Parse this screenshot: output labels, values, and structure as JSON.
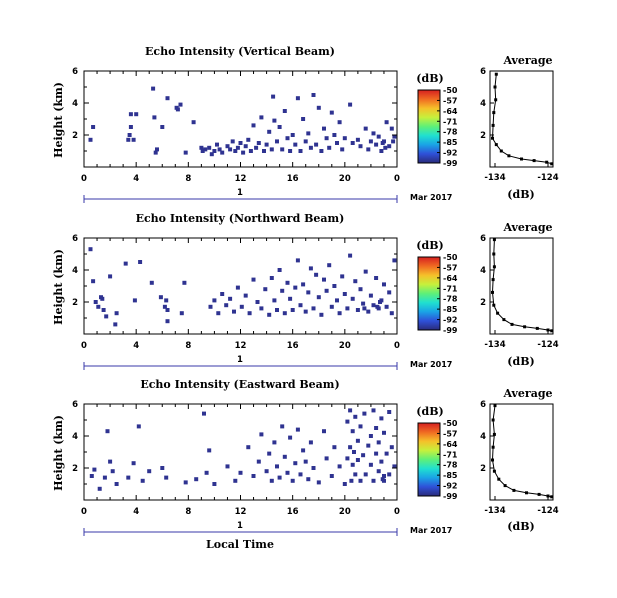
{
  "colors": {
    "echo": "#2f3391",
    "axis": "#000000",
    "date_bar": "#3a3aa8",
    "colorbar": [
      "#2a2b7a",
      "#2f50d8",
      "#1aa3e6",
      "#20e0d0",
      "#5ef078",
      "#c7f03c",
      "#f5c02a",
      "#f06a22",
      "#d62020"
    ]
  },
  "date_label": "Mar 2017",
  "date_day": "1",
  "xlabel_bottom": "Local Time",
  "chart_data": [
    {
      "type": "heatmap",
      "title": "Echo Intensity (Vertical Beam)",
      "ylabel": "Height (km)",
      "xlabel": "",
      "x_ticks": [
        "0",
        "4",
        "8",
        "12",
        "16",
        "20",
        "0"
      ],
      "xlim": [
        0,
        24
      ],
      "y_ticks": [
        "6",
        "4",
        "2"
      ],
      "ylim": [
        0,
        6
      ],
      "colorbar_label": "(dB)",
      "colorbar_ticks": [
        "-50",
        "-57",
        "-64",
        "-71",
        "-78",
        "-85",
        "-92",
        "-99"
      ],
      "clim": [
        -99,
        -50
      ],
      "echo_cells": [
        [
          0.5,
          1.7
        ],
        [
          0.7,
          2.5
        ],
        [
          3.4,
          1.7
        ],
        [
          3.5,
          2.0
        ],
        [
          3.6,
          2.5
        ],
        [
          3.6,
          3.3
        ],
        [
          3.8,
          1.7
        ],
        [
          4.0,
          3.3
        ],
        [
          5.3,
          4.9
        ],
        [
          5.4,
          3.1
        ],
        [
          5.5,
          0.9
        ],
        [
          5.6,
          1.1
        ],
        [
          6.0,
          2.5
        ],
        [
          6.4,
          4.3
        ],
        [
          7.1,
          3.7
        ],
        [
          7.2,
          3.6
        ],
        [
          7.4,
          3.9
        ],
        [
          7.8,
          0.9
        ],
        [
          8.4,
          2.8
        ],
        [
          9.0,
          1.2
        ],
        [
          9.1,
          1.0
        ],
        [
          9.3,
          1.1
        ],
        [
          9.6,
          1.2
        ],
        [
          9.8,
          0.8
        ],
        [
          10.0,
          1.0
        ],
        [
          10.2,
          1.4
        ],
        [
          10.4,
          1.1
        ],
        [
          10.6,
          0.9
        ],
        [
          11.0,
          1.3
        ],
        [
          11.2,
          1.1
        ],
        [
          11.4,
          1.6
        ],
        [
          11.6,
          1.0
        ],
        [
          11.8,
          1.2
        ],
        [
          12.0,
          1.5
        ],
        [
          12.2,
          0.9
        ],
        [
          12.4,
          1.3
        ],
        [
          12.6,
          1.7
        ],
        [
          12.8,
          1.0
        ],
        [
          13.0,
          2.6
        ],
        [
          13.2,
          1.2
        ],
        [
          13.4,
          1.5
        ],
        [
          13.6,
          3.1
        ],
        [
          13.8,
          1.0
        ],
        [
          14.0,
          1.4
        ],
        [
          14.2,
          2.2
        ],
        [
          14.4,
          1.1
        ],
        [
          14.5,
          4.4
        ],
        [
          14.6,
          2.9
        ],
        [
          14.8,
          1.6
        ],
        [
          15.0,
          2.5
        ],
        [
          15.2,
          1.1
        ],
        [
          15.4,
          3.5
        ],
        [
          15.6,
          1.8
        ],
        [
          15.8,
          1.0
        ],
        [
          16.0,
          2.0
        ],
        [
          16.2,
          1.4
        ],
        [
          16.4,
          4.3
        ],
        [
          16.6,
          1.0
        ],
        [
          16.8,
          3.0
        ],
        [
          17.0,
          1.6
        ],
        [
          17.2,
          2.1
        ],
        [
          17.4,
          1.2
        ],
        [
          17.6,
          4.5
        ],
        [
          17.8,
          1.4
        ],
        [
          18.0,
          3.7
        ],
        [
          18.2,
          1.0
        ],
        [
          18.4,
          2.4
        ],
        [
          18.6,
          1.8
        ],
        [
          18.8,
          1.2
        ],
        [
          19.0,
          3.4
        ],
        [
          19.2,
          2.0
        ],
        [
          19.4,
          1.5
        ],
        [
          19.6,
          2.8
        ],
        [
          19.8,
          1.1
        ],
        [
          20.0,
          1.8
        ],
        [
          20.4,
          3.9
        ],
        [
          20.6,
          1.5
        ],
        [
          21.0,
          1.7
        ],
        [
          21.2,
          1.3
        ],
        [
          21.6,
          2.4
        ],
        [
          21.8,
          1.1
        ],
        [
          22.0,
          1.6
        ],
        [
          22.2,
          2.1
        ],
        [
          22.4,
          1.4
        ],
        [
          22.6,
          1.9
        ],
        [
          22.8,
          1.0
        ],
        [
          23.0,
          1.6
        ],
        [
          23.2,
          2.8
        ],
        [
          23.4,
          1.3
        ],
        [
          23.6,
          2.4
        ],
        [
          23.8,
          1.9
        ],
        [
          23.7,
          1.6
        ],
        [
          22.9,
          1.5
        ],
        [
          23.1,
          1.2
        ]
      ],
      "avg_title": "Average",
      "avg_xlabel": "(dB)",
      "avg_x_ticks": [
        "-134",
        "-124"
      ],
      "avg_xlim": [
        -134,
        -124
      ],
      "avg_y_ticks": [
        "6",
        "4",
        "2"
      ],
      "avg_profile": [
        [
          -133.0,
          5.8
        ],
        [
          -133.2,
          5.0
        ],
        [
          -133.1,
          4.2
        ],
        [
          -133.4,
          3.4
        ],
        [
          -133.5,
          2.6
        ],
        [
          -133.6,
          1.8
        ],
        [
          -133.0,
          1.4
        ],
        [
          -132.2,
          1.0
        ],
        [
          -131.0,
          0.7
        ],
        [
          -129.0,
          0.5
        ],
        [
          -127.0,
          0.4
        ],
        [
          -125.0,
          0.3
        ],
        [
          -124.2,
          0.2
        ]
      ]
    },
    {
      "type": "heatmap",
      "title": "Echo Intensity (Northward Beam)",
      "ylabel": "Height (km)",
      "xlabel": "",
      "x_ticks": [
        "0",
        "4",
        "8",
        "12",
        "16",
        "20",
        "0"
      ],
      "xlim": [
        0,
        24
      ],
      "y_ticks": [
        "6",
        "4",
        "2"
      ],
      "ylim": [
        0,
        6
      ],
      "colorbar_label": "(dB)",
      "colorbar_ticks": [
        "-50",
        "-57",
        "-64",
        "-71",
        "-78",
        "-85",
        "-92",
        "-99"
      ],
      "clim": [
        -99,
        -50
      ],
      "echo_cells": [
        [
          0.5,
          5.3
        ],
        [
          0.7,
          3.3
        ],
        [
          0.9,
          2.0
        ],
        [
          1.1,
          1.7
        ],
        [
          1.3,
          2.3
        ],
        [
          1.4,
          2.2
        ],
        [
          1.5,
          1.5
        ],
        [
          1.7,
          1.1
        ],
        [
          2.0,
          3.6
        ],
        [
          2.4,
          0.6
        ],
        [
          2.5,
          1.3
        ],
        [
          3.2,
          4.4
        ],
        [
          3.9,
          2.1
        ],
        [
          4.3,
          4.5
        ],
        [
          5.2,
          3.2
        ],
        [
          5.9,
          2.3
        ],
        [
          6.2,
          1.7
        ],
        [
          6.3,
          2.1
        ],
        [
          6.4,
          1.5
        ],
        [
          6.4,
          0.8
        ],
        [
          7.5,
          1.3
        ],
        [
          7.7,
          3.2
        ],
        [
          9.7,
          1.7
        ],
        [
          10.0,
          2.1
        ],
        [
          10.3,
          1.3
        ],
        [
          10.6,
          2.5
        ],
        [
          10.9,
          1.8
        ],
        [
          11.2,
          2.2
        ],
        [
          11.5,
          1.4
        ],
        [
          11.8,
          2.9
        ],
        [
          12.1,
          1.7
        ],
        [
          12.4,
          2.4
        ],
        [
          12.7,
          1.3
        ],
        [
          13.0,
          3.4
        ],
        [
          13.3,
          2.0
        ],
        [
          13.6,
          1.6
        ],
        [
          13.9,
          2.8
        ],
        [
          14.2,
          1.2
        ],
        [
          14.4,
          3.5
        ],
        [
          14.6,
          2.1
        ],
        [
          14.8,
          1.5
        ],
        [
          15.0,
          4.0
        ],
        [
          15.2,
          2.7
        ],
        [
          15.4,
          1.3
        ],
        [
          15.6,
          3.2
        ],
        [
          15.8,
          2.2
        ],
        [
          16.0,
          1.5
        ],
        [
          16.2,
          2.9
        ],
        [
          16.4,
          4.6
        ],
        [
          16.6,
          1.8
        ],
        [
          16.8,
          3.1
        ],
        [
          17.0,
          1.4
        ],
        [
          17.2,
          2.6
        ],
        [
          17.4,
          4.1
        ],
        [
          17.6,
          1.6
        ],
        [
          17.8,
          3.7
        ],
        [
          18.0,
          2.3
        ],
        [
          18.2,
          1.2
        ],
        [
          18.4,
          3.4
        ],
        [
          18.6,
          2.7
        ],
        [
          18.8,
          4.3
        ],
        [
          19.0,
          1.7
        ],
        [
          19.2,
          3.0
        ],
        [
          19.4,
          2.1
        ],
        [
          19.6,
          1.3
        ],
        [
          19.8,
          3.6
        ],
        [
          20.0,
          2.5
        ],
        [
          20.2,
          1.6
        ],
        [
          20.4,
          4.9
        ],
        [
          20.6,
          2.2
        ],
        [
          20.8,
          3.3
        ],
        [
          21.0,
          1.5
        ],
        [
          21.2,
          2.8
        ],
        [
          21.4,
          1.9
        ],
        [
          21.6,
          3.9
        ],
        [
          21.8,
          1.4
        ],
        [
          22.0,
          2.4
        ],
        [
          22.2,
          1.8
        ],
        [
          22.4,
          3.5
        ],
        [
          22.6,
          1.6
        ],
        [
          22.8,
          2.1
        ],
        [
          23.0,
          3.1
        ],
        [
          23.2,
          1.7
        ],
        [
          23.4,
          2.6
        ],
        [
          23.6,
          1.3
        ],
        [
          23.8,
          4.6
        ],
        [
          22.5,
          1.7
        ],
        [
          21.5,
          1.6
        ],
        [
          22.7,
          2.0
        ]
      ],
      "avg_title": "Average",
      "avg_xlabel": "(dB)",
      "avg_x_ticks": [
        "-134",
        "-124"
      ],
      "avg_xlim": [
        -134,
        -124
      ],
      "avg_y_ticks": [
        "6",
        "4",
        "2"
      ],
      "avg_profile": [
        [
          -133.3,
          5.9
        ],
        [
          -133.4,
          5.0
        ],
        [
          -133.3,
          4.2
        ],
        [
          -133.5,
          3.4
        ],
        [
          -133.6,
          2.6
        ],
        [
          -133.4,
          1.8
        ],
        [
          -132.8,
          1.3
        ],
        [
          -131.8,
          0.9
        ],
        [
          -130.5,
          0.6
        ],
        [
          -128.5,
          0.45
        ],
        [
          -126.5,
          0.35
        ],
        [
          -124.8,
          0.25
        ],
        [
          -124.2,
          0.2
        ]
      ]
    },
    {
      "type": "heatmap",
      "title": "Echo Intensity (Eastward Beam)",
      "ylabel": "Height (km)",
      "xlabel": "Local Time",
      "x_ticks": [
        "0",
        "4",
        "8",
        "12",
        "16",
        "20",
        "0"
      ],
      "xlim": [
        0,
        24
      ],
      "y_ticks": [
        "6",
        "4",
        "2"
      ],
      "ylim": [
        0,
        6
      ],
      "colorbar_label": "(dB)",
      "colorbar_ticks": [
        "-50",
        "-57",
        "-64",
        "-71",
        "-78",
        "-85",
        "-92",
        "-99"
      ],
      "clim": [
        -99,
        -50
      ],
      "echo_cells": [
        [
          0.6,
          1.5
        ],
        [
          0.8,
          1.9
        ],
        [
          1.2,
          0.7
        ],
        [
          1.6,
          1.4
        ],
        [
          1.8,
          4.3
        ],
        [
          2.0,
          2.4
        ],
        [
          2.2,
          1.8
        ],
        [
          2.5,
          1.0
        ],
        [
          3.4,
          1.4
        ],
        [
          3.8,
          2.3
        ],
        [
          4.2,
          4.6
        ],
        [
          4.5,
          1.2
        ],
        [
          5.0,
          1.8
        ],
        [
          6.0,
          2.0
        ],
        [
          6.3,
          1.4
        ],
        [
          7.8,
          1.1
        ],
        [
          8.6,
          1.3
        ],
        [
          9.2,
          5.4
        ],
        [
          9.4,
          1.7
        ],
        [
          9.6,
          3.1
        ],
        [
          10.0,
          1.0
        ],
        [
          11.0,
          2.1
        ],
        [
          11.6,
          1.2
        ],
        [
          12.0,
          1.7
        ],
        [
          12.6,
          3.3
        ],
        [
          13.0,
          1.5
        ],
        [
          13.4,
          2.4
        ],
        [
          13.6,
          4.1
        ],
        [
          14.0,
          1.8
        ],
        [
          14.2,
          2.9
        ],
        [
          14.4,
          1.2
        ],
        [
          14.6,
          3.6
        ],
        [
          14.8,
          2.1
        ],
        [
          15.0,
          1.4
        ],
        [
          15.2,
          4.6
        ],
        [
          15.4,
          2.7
        ],
        [
          15.6,
          1.7
        ],
        [
          15.8,
          3.9
        ],
        [
          16.0,
          1.2
        ],
        [
          16.2,
          2.3
        ],
        [
          16.4,
          4.4
        ],
        [
          16.6,
          1.6
        ],
        [
          16.8,
          3.1
        ],
        [
          17.0,
          2.4
        ],
        [
          17.2,
          1.3
        ],
        [
          17.4,
          3.6
        ],
        [
          17.6,
          2.0
        ],
        [
          18.0,
          1.1
        ],
        [
          18.4,
          4.3
        ],
        [
          18.6,
          2.6
        ],
        [
          19.0,
          1.5
        ],
        [
          19.2,
          3.3
        ],
        [
          19.6,
          2.1
        ],
        [
          20.0,
          1.0
        ],
        [
          20.2,
          2.6
        ],
        [
          20.2,
          4.9
        ],
        [
          20.4,
          3.3
        ],
        [
          20.4,
          5.6
        ],
        [
          20.5,
          1.2
        ],
        [
          20.6,
          2.2
        ],
        [
          20.6,
          4.3
        ],
        [
          20.7,
          3.0
        ],
        [
          20.8,
          1.6
        ],
        [
          20.8,
          5.2
        ],
        [
          21.0,
          2.5
        ],
        [
          21.0,
          3.7
        ],
        [
          21.2,
          1.2
        ],
        [
          21.2,
          4.6
        ],
        [
          21.4,
          2.8
        ],
        [
          21.5,
          5.4
        ],
        [
          21.6,
          1.6
        ],
        [
          21.8,
          3.4
        ],
        [
          22.0,
          2.2
        ],
        [
          22.0,
          4.0
        ],
        [
          22.2,
          1.2
        ],
        [
          22.2,
          5.6
        ],
        [
          22.4,
          2.9
        ],
        [
          22.4,
          4.5
        ],
        [
          22.6,
          1.8
        ],
        [
          22.6,
          3.6
        ],
        [
          22.8,
          2.4
        ],
        [
          22.8,
          5.1
        ],
        [
          23.0,
          1.2
        ],
        [
          23.0,
          4.2
        ],
        [
          23.2,
          2.9
        ],
        [
          23.4,
          1.6
        ],
        [
          23.4,
          5.5
        ],
        [
          23.6,
          3.3
        ],
        [
          23.8,
          2.1
        ],
        [
          23.0,
          1.5
        ],
        [
          22.9,
          1.3
        ]
      ],
      "avg_title": "Average",
      "avg_xlabel": "(dB)",
      "avg_x_ticks": [
        "-134",
        "-124"
      ],
      "avg_xlim": [
        -134,
        -124
      ],
      "avg_y_ticks": [
        "6",
        "4",
        "2"
      ],
      "avg_profile": [
        [
          -133.2,
          5.9
        ],
        [
          -133.5,
          5.0
        ],
        [
          -133.3,
          4.1
        ],
        [
          -133.5,
          3.3
        ],
        [
          -133.6,
          2.5
        ],
        [
          -133.3,
          1.8
        ],
        [
          -132.6,
          1.3
        ],
        [
          -131.6,
          0.9
        ],
        [
          -130.2,
          0.6
        ],
        [
          -128.2,
          0.45
        ],
        [
          -126.2,
          0.35
        ],
        [
          -124.8,
          0.25
        ],
        [
          -124.2,
          0.2
        ]
      ]
    }
  ]
}
